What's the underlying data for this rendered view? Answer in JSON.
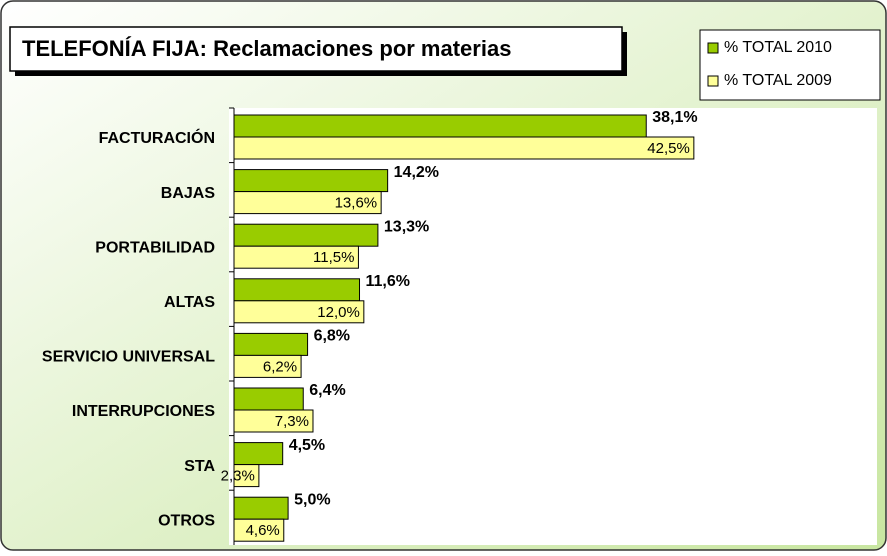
{
  "chart_data": {
    "type": "bar",
    "orientation": "horizontal",
    "title": "TELEFONÍA FIJA: Reclamaciones por materias",
    "categories": [
      "FACTURACIÓN",
      "BAJAS",
      "PORTABILIDAD",
      "ALTAS",
      "SERVICIO UNIVERSAL",
      "INTERRUPCIONES",
      "STA",
      "OTROS"
    ],
    "series": [
      {
        "name": "% TOTAL 2010",
        "color": "#99cc00",
        "values": [
          38.1,
          14.2,
          13.3,
          11.6,
          6.8,
          6.4,
          4.5,
          5.0
        ],
        "value_labels": [
          "38,1%",
          "14,2%",
          "13,3%",
          "11,6%",
          "6,8%",
          "6,4%",
          "4,5%",
          "5,0%"
        ]
      },
      {
        "name": "% TOTAL 2009",
        "color": "#ffff99",
        "values": [
          42.5,
          13.6,
          11.5,
          12.0,
          6.2,
          7.3,
          2.3,
          4.6
        ],
        "value_labels": [
          "42,5%",
          "13,6%",
          "11,5%",
          "12,0%",
          "6,2%",
          "7,3%",
          "2,3%",
          "4,6%"
        ]
      }
    ],
    "legend": "top-right"
  }
}
